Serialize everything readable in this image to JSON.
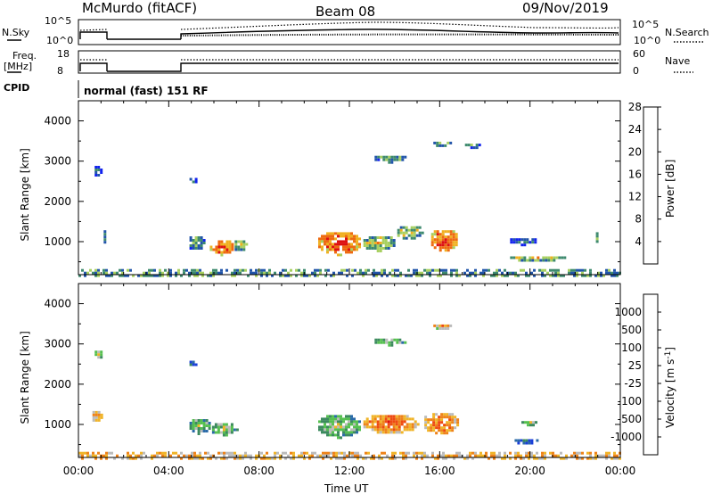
{
  "header": {
    "station": "McMurdo (fitACF)",
    "beam": "Beam 08",
    "date": "09/Nov/2019"
  },
  "sky_panel": {
    "left_label": "N.Sky",
    "right_label": "N.Search",
    "left_ticks": [
      "10^5",
      "10^0"
    ],
    "right_ticks": [
      "10^5",
      "10^0"
    ]
  },
  "freq_panel": {
    "left_label_1": "Freq.",
    "left_label_2": "[MHz]",
    "left_ticks": [
      "18",
      "8"
    ],
    "right_label": "Nave",
    "right_ticks": [
      "60",
      "0"
    ]
  },
  "cpid": {
    "label": "CPID",
    "value": "normal (fast) 151 RF"
  },
  "chart_data": [
    {
      "type": "heatmap",
      "title": "",
      "xlabel": "",
      "ylabel": "Slant Range [km]",
      "x_ticks": [
        "00:00",
        "04:00",
        "08:00",
        "12:00",
        "16:00",
        "20:00",
        "00:00"
      ],
      "xlim_hours": [
        0,
        24
      ],
      "ylim": [
        180,
        4500
      ],
      "y_ticks": [
        1000,
        2000,
        3000,
        4000
      ],
      "colorbar": {
        "label": "Power [dB]",
        "ticks": [
          "4",
          "8",
          "12",
          "16",
          "20",
          "24",
          "28"
        ],
        "colors": [
          "#1122ee",
          "#2255aa",
          "#3e8a6e",
          "#a8d060",
          "#f0b020",
          "#ee6a10",
          "#dd1010"
        ]
      },
      "echo_regions": [
        {
          "t0": 0.0,
          "t1": 24.0,
          "r0": 180,
          "r1": 320,
          "level": 2
        },
        {
          "t0": 0.6,
          "t1": 1.0,
          "r0": 2650,
          "r1": 2950,
          "level": 1
        },
        {
          "t0": 1.0,
          "t1": 1.2,
          "r0": 1000,
          "r1": 1350,
          "level": 1
        },
        {
          "t0": 4.8,
          "t1": 5.2,
          "r0": 2450,
          "r1": 2650,
          "level": 1
        },
        {
          "t0": 4.8,
          "t1": 5.6,
          "r0": 800,
          "r1": 1200,
          "level": 2
        },
        {
          "t0": 5.7,
          "t1": 6.8,
          "r0": 700,
          "r1": 1100,
          "level": 5
        },
        {
          "t0": 6.8,
          "t1": 7.4,
          "r0": 800,
          "r1": 1100,
          "level": 3
        },
        {
          "t0": 10.5,
          "t1": 12.5,
          "r0": 700,
          "r1": 1300,
          "level": 5
        },
        {
          "t0": 12.5,
          "t1": 14.0,
          "r0": 800,
          "r1": 1200,
          "level": 3
        },
        {
          "t0": 13.0,
          "t1": 14.5,
          "r0": 3000,
          "r1": 3200,
          "level": 2
        },
        {
          "t0": 14.0,
          "t1": 15.2,
          "r0": 1100,
          "r1": 1450,
          "level": 3
        },
        {
          "t0": 15.5,
          "t1": 16.8,
          "r0": 800,
          "r1": 1350,
          "level": 5
        },
        {
          "t0": 15.6,
          "t1": 16.5,
          "r0": 3400,
          "r1": 3550,
          "level": 2
        },
        {
          "t0": 17.0,
          "t1": 17.8,
          "r0": 3350,
          "r1": 3500,
          "level": 2
        },
        {
          "t0": 19.0,
          "t1": 20.3,
          "r0": 950,
          "r1": 1150,
          "level": 1
        },
        {
          "t0": 19.0,
          "t1": 21.5,
          "r0": 550,
          "r1": 700,
          "level": 3
        },
        {
          "t0": 22.8,
          "t1": 23.0,
          "r0": 1000,
          "r1": 1300,
          "level": 2
        }
      ]
    },
    {
      "type": "heatmap",
      "title": "",
      "xlabel": "Time UT",
      "ylabel": "Slant Range [km]",
      "x_ticks": [
        "00:00",
        "04:00",
        "08:00",
        "12:00",
        "16:00",
        "20:00",
        "00:00"
      ],
      "xlim_hours": [
        0,
        24
      ],
      "ylim": [
        180,
        4500
      ],
      "y_ticks": [
        1000,
        2000,
        3000,
        4000
      ],
      "colorbar": {
        "label": "Velocity [m s^-1]",
        "ticks": [
          "1000",
          "500",
          "100",
          "25",
          "-25",
          "-100",
          "-500",
          "-1000"
        ],
        "colors": [
          "#1a3fd8",
          "#2a6aa8",
          "#3c8a5e",
          "#56c050",
          "#bbbbbb",
          "#f0b428",
          "#ee8218",
          "#ee4a10",
          "#dd0f0f"
        ]
      },
      "echo_regions": [
        {
          "t0": 0.0,
          "t1": 24.0,
          "r0": 180,
          "r1": 320,
          "level": 5
        },
        {
          "t0": 0.5,
          "t1": 1.0,
          "r0": 1100,
          "r1": 1400,
          "level": 5
        },
        {
          "t0": 0.6,
          "t1": 1.0,
          "r0": 2650,
          "r1": 2900,
          "level": 4
        },
        {
          "t0": 4.8,
          "t1": 5.2,
          "r0": 2450,
          "r1": 2650,
          "level": 1
        },
        {
          "t0": 4.8,
          "t1": 5.8,
          "r0": 800,
          "r1": 1200,
          "level": 3
        },
        {
          "t0": 5.8,
          "t1": 7.0,
          "r0": 750,
          "r1": 1100,
          "level": 3
        },
        {
          "t0": 10.5,
          "t1": 12.5,
          "r0": 700,
          "r1": 1300,
          "level": 3
        },
        {
          "t0": 12.5,
          "t1": 15.0,
          "r0": 800,
          "r1": 1300,
          "level": 6
        },
        {
          "t0": 13.0,
          "t1": 14.5,
          "r0": 3000,
          "r1": 3200,
          "level": 3
        },
        {
          "t0": 15.2,
          "t1": 16.8,
          "r0": 800,
          "r1": 1350,
          "level": 6
        },
        {
          "t0": 15.6,
          "t1": 16.5,
          "r0": 3400,
          "r1": 3550,
          "level": 5
        },
        {
          "t0": 19.2,
          "t1": 20.3,
          "r0": 550,
          "r1": 700,
          "level": 1
        },
        {
          "t0": 19.5,
          "t1": 20.3,
          "r0": 1000,
          "r1": 1150,
          "level": 3
        }
      ]
    }
  ],
  "colors": {
    "axis": "#000000",
    "background": "#ffffff"
  }
}
